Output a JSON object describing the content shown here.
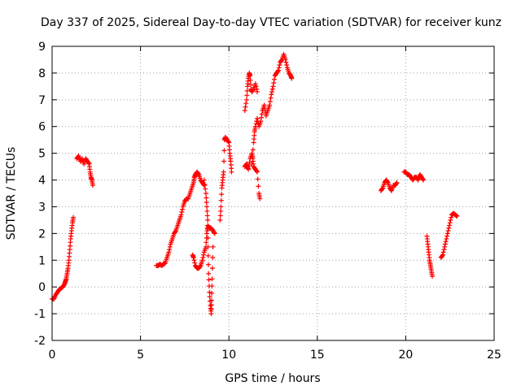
{
  "chart_data": {
    "type": "scatter",
    "title": "Day 337 of 2025, Sidereal Day-to-day VTEC variation (SDTVAR) for receiver kunz",
    "xlabel": "GPS time / hours",
    "ylabel": "SDTVAR / TECUs",
    "xlim": [
      0,
      25
    ],
    "ylim": [
      -2,
      9
    ],
    "x_ticks": [
      0,
      5,
      10,
      15,
      20,
      25
    ],
    "y_ticks": [
      -2,
      -1,
      0,
      1,
      2,
      3,
      4,
      5,
      6,
      7,
      8,
      9
    ],
    "grid": true,
    "grid_style": "dotted",
    "legend": "none",
    "marker": "plus",
    "series_color": "#ff0000",
    "segments": [
      [
        [
          0.0,
          -0.45
        ],
        [
          0.1,
          -0.45
        ],
        [
          0.2,
          -0.3
        ],
        [
          0.3,
          -0.2
        ],
        [
          0.4,
          -0.1
        ],
        [
          0.5,
          -0.05
        ],
        [
          0.6,
          0.0
        ],
        [
          0.7,
          0.1
        ],
        [
          0.75,
          0.2
        ],
        [
          0.8,
          0.3
        ],
        [
          0.85,
          0.5
        ],
        [
          0.9,
          0.7
        ],
        [
          0.95,
          1.0
        ],
        [
          1.0,
          1.4
        ],
        [
          1.05,
          1.8
        ],
        [
          1.1,
          2.1
        ],
        [
          1.15,
          2.4
        ],
        [
          1.2,
          2.6
        ]
      ],
      [
        [
          1.4,
          4.8
        ],
        [
          1.5,
          4.9
        ],
        [
          1.6,
          4.7
        ],
        [
          1.7,
          4.8
        ],
        [
          1.8,
          4.6
        ],
        [
          1.9,
          4.8
        ],
        [
          2.0,
          4.7
        ],
        [
          2.1,
          4.6
        ],
        [
          2.15,
          4.3
        ],
        [
          2.2,
          4.1
        ],
        [
          2.25,
          4.0
        ],
        [
          2.3,
          3.8
        ]
      ],
      [
        [
          5.9,
          0.8
        ],
        [
          6.0,
          0.8
        ],
        [
          6.1,
          0.85
        ],
        [
          6.2,
          0.8
        ],
        [
          6.3,
          0.85
        ],
        [
          6.4,
          0.9
        ],
        [
          6.5,
          1.1
        ],
        [
          6.6,
          1.3
        ],
        [
          6.7,
          1.6
        ],
        [
          6.8,
          1.8
        ],
        [
          6.9,
          2.0
        ],
        [
          7.0,
          2.1
        ],
        [
          7.1,
          2.3
        ],
        [
          7.2,
          2.5
        ],
        [
          7.3,
          2.7
        ],
        [
          7.4,
          3.0
        ],
        [
          7.5,
          3.2
        ],
        [
          7.6,
          3.3
        ],
        [
          7.7,
          3.3
        ],
        [
          7.8,
          3.5
        ],
        [
          7.9,
          3.7
        ],
        [
          8.0,
          3.9
        ],
        [
          8.05,
          4.1
        ],
        [
          8.1,
          4.2
        ],
        [
          8.2,
          4.3
        ],
        [
          8.3,
          4.2
        ],
        [
          8.4,
          4.0
        ],
        [
          8.5,
          3.9
        ],
        [
          8.6,
          3.8
        ]
      ],
      [
        [
          7.95,
          1.2
        ],
        [
          8.0,
          1.1
        ],
        [
          8.1,
          0.8
        ],
        [
          8.2,
          0.7
        ],
        [
          8.3,
          0.7
        ],
        [
          8.4,
          0.8
        ],
        [
          8.5,
          1.0
        ],
        [
          8.6,
          1.3
        ],
        [
          8.7,
          1.5
        ],
        [
          8.75,
          2.0
        ],
        [
          8.8,
          2.3
        ],
        [
          8.9,
          2.2
        ],
        [
          9.0,
          2.2
        ],
        [
          9.1,
          2.1
        ],
        [
          9.2,
          2.0
        ]
      ],
      [
        [
          8.6,
          4.0
        ],
        [
          8.7,
          3.5
        ],
        [
          8.75,
          3.0
        ],
        [
          8.8,
          2.5
        ],
        [
          8.82,
          1.5
        ],
        [
          8.85,
          0.5
        ],
        [
          8.9,
          -0.2
        ],
        [
          8.95,
          -0.7
        ],
        [
          9.0,
          -1.0
        ],
        [
          9.02,
          -0.5
        ],
        [
          9.05,
          0.3
        ],
        [
          9.1,
          1.5
        ]
      ],
      [
        [
          9.5,
          2.5
        ],
        [
          9.55,
          3.0
        ],
        [
          9.6,
          3.7
        ],
        [
          9.65,
          4.0
        ],
        [
          9.7,
          4.3
        ],
        [
          9.75,
          5.5
        ],
        [
          9.8,
          5.6
        ],
        [
          9.9,
          5.5
        ],
        [
          10.0,
          5.4
        ],
        [
          10.05,
          5.0
        ],
        [
          10.1,
          4.7
        ],
        [
          10.15,
          4.3
        ]
      ],
      [
        [
          10.9,
          4.5
        ],
        [
          11.0,
          4.6
        ],
        [
          11.05,
          4.5
        ],
        [
          11.1,
          4.4
        ],
        [
          11.2,
          4.8
        ],
        [
          11.3,
          5.0
        ],
        [
          11.35,
          4.8
        ],
        [
          11.4,
          4.5
        ],
        [
          11.5,
          4.4
        ],
        [
          11.6,
          4.3
        ],
        [
          11.7,
          3.5
        ],
        [
          11.75,
          3.3
        ]
      ],
      [
        [
          10.9,
          6.6
        ],
        [
          11.0,
          7.0
        ],
        [
          11.05,
          7.5
        ],
        [
          11.1,
          7.8
        ],
        [
          11.15,
          8.0
        ],
        [
          11.2,
          7.9
        ],
        [
          11.25,
          7.4
        ],
        [
          11.3,
          7.3
        ],
        [
          11.4,
          7.4
        ],
        [
          11.5,
          7.6
        ],
        [
          11.6,
          7.3
        ]
      ],
      [
        [
          11.3,
          4.6
        ],
        [
          11.4,
          5.4
        ],
        [
          11.45,
          5.8
        ],
        [
          11.5,
          6.0
        ],
        [
          11.6,
          6.3
        ],
        [
          11.7,
          6.0
        ],
        [
          11.8,
          6.2
        ],
        [
          11.9,
          6.6
        ],
        [
          12.0,
          6.8
        ],
        [
          12.1,
          6.4
        ],
        [
          12.2,
          6.6
        ],
        [
          12.3,
          6.8
        ],
        [
          12.4,
          7.2
        ],
        [
          12.5,
          7.5
        ],
        [
          12.6,
          7.9
        ],
        [
          12.7,
          8.0
        ],
        [
          12.8,
          8.1
        ],
        [
          12.9,
          8.4
        ],
        [
          13.0,
          8.5
        ],
        [
          13.1,
          8.7
        ],
        [
          13.2,
          8.5
        ],
        [
          13.3,
          8.2
        ],
        [
          13.4,
          8.0
        ],
        [
          13.5,
          7.9
        ],
        [
          13.55,
          7.8
        ]
      ],
      [
        [
          18.6,
          3.6
        ],
        [
          18.7,
          3.7
        ],
        [
          18.8,
          3.9
        ],
        [
          18.9,
          4.0
        ],
        [
          19.0,
          3.9
        ],
        [
          19.1,
          3.7
        ],
        [
          19.2,
          3.6
        ],
        [
          19.3,
          3.8
        ],
        [
          19.4,
          3.8
        ],
        [
          19.5,
          3.9
        ]
      ],
      [
        [
          19.9,
          4.3
        ],
        [
          20.0,
          4.3
        ],
        [
          20.1,
          4.2
        ],
        [
          20.2,
          4.2
        ],
        [
          20.3,
          4.1
        ],
        [
          20.4,
          4.0
        ],
        [
          20.5,
          4.1
        ],
        [
          20.6,
          4.1
        ],
        [
          20.7,
          4.0
        ],
        [
          20.8,
          4.2
        ],
        [
          20.9,
          4.1
        ],
        [
          21.0,
          4.0
        ]
      ],
      [
        [
          21.2,
          1.9
        ],
        [
          21.25,
          1.6
        ],
        [
          21.3,
          1.3
        ],
        [
          21.35,
          1.0
        ],
        [
          21.4,
          0.8
        ],
        [
          21.45,
          0.6
        ],
        [
          21.5,
          0.4
        ]
      ],
      [
        [
          22.0,
          1.1
        ],
        [
          22.1,
          1.2
        ],
        [
          22.2,
          1.5
        ],
        [
          22.3,
          1.8
        ],
        [
          22.4,
          2.1
        ],
        [
          22.5,
          2.4
        ],
        [
          22.6,
          2.7
        ],
        [
          22.7,
          2.75
        ],
        [
          22.8,
          2.7
        ],
        [
          22.9,
          2.65
        ]
      ]
    ]
  }
}
